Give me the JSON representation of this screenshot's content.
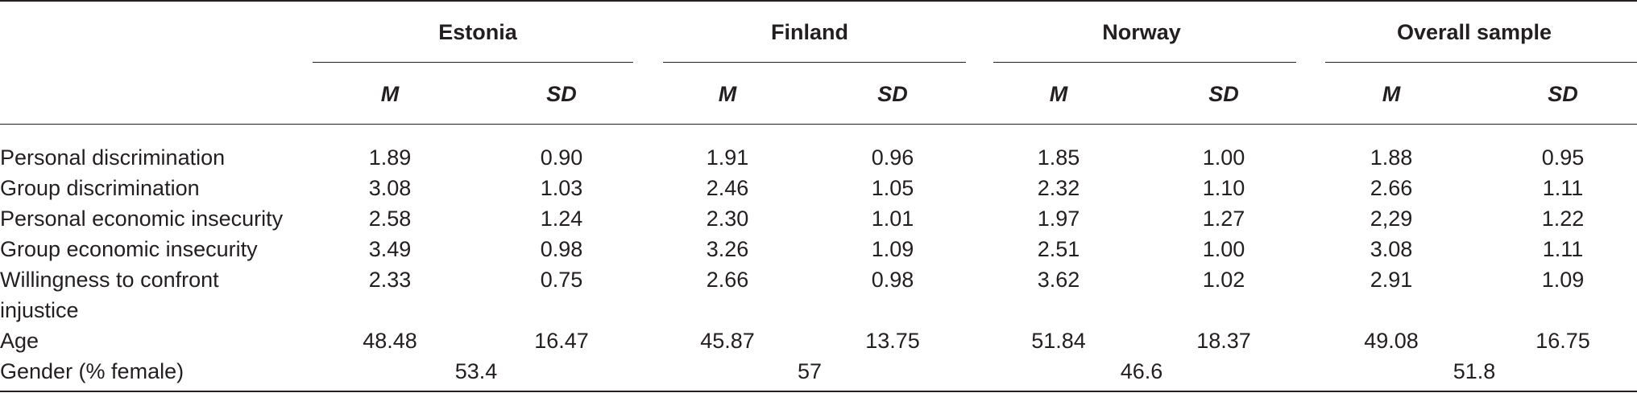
{
  "table": {
    "groups": [
      "Estonia",
      "Finland",
      "Norway",
      "Overall sample"
    ],
    "subheaders": [
      "M",
      "SD"
    ],
    "rows": [
      {
        "label": [
          "Personal discrimination"
        ],
        "values": [
          "1.89",
          "0.90",
          "1.91",
          "0.96",
          "1.85",
          "1.00",
          "1.88",
          "0.95"
        ]
      },
      {
        "label": [
          "Group discrimination"
        ],
        "values": [
          "3.08",
          "1.03",
          "2.46",
          "1.05",
          "2.32",
          "1.10",
          "2.66",
          "1.11"
        ]
      },
      {
        "label": [
          "Personal economic insecurity"
        ],
        "values": [
          "2.58",
          "1.24",
          "2.30",
          "1.01",
          "1.97",
          "1.27",
          "2,29",
          "1.22"
        ]
      },
      {
        "label": [
          "Group economic insecurity"
        ],
        "values": [
          "3.49",
          "0.98",
          "3.26",
          "1.09",
          "2.51",
          "1.00",
          "3.08",
          "1.11"
        ]
      },
      {
        "label": [
          "Willingness to confront",
          "injustice"
        ],
        "values": [
          "2.33",
          "0.75",
          "2.66",
          "0.98",
          "3.62",
          "1.02",
          "2.91",
          "1.09"
        ]
      },
      {
        "label": [
          "Age"
        ],
        "values": [
          "48.48",
          "16.47",
          "45.87",
          "13.75",
          "51.84",
          "18.37",
          "49.08",
          "16.75"
        ]
      }
    ],
    "gender_row": {
      "label": "Gender (% female)",
      "values": [
        "53.4",
        "57",
        "46.6",
        "51.8"
      ]
    }
  }
}
